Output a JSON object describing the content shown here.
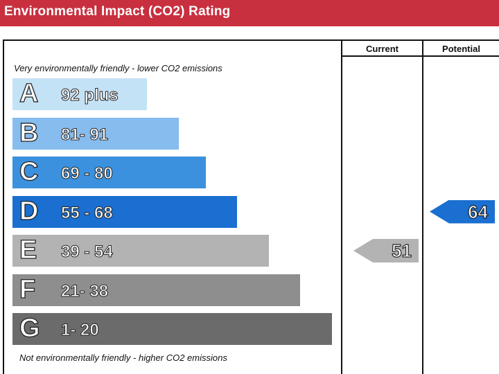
{
  "header": {
    "title": "Environmental Impact (CO2) Rating"
  },
  "columns": {
    "current": "Current",
    "potential": "Potential"
  },
  "notes": {
    "top": "Very environmentally friendly - lower CO2 emissions",
    "bottom": "Not environmentally friendly - higher CO2 emissions"
  },
  "chart_data": {
    "type": "bar",
    "title": "Environmental Impact (CO2) Rating",
    "bands": [
      {
        "letter": "A",
        "range": "92 plus",
        "color": "#c4e2f6"
      },
      {
        "letter": "B",
        "range": "81- 91",
        "color": "#86bcee"
      },
      {
        "letter": "C",
        "range": "69 - 80",
        "color": "#3b91dd"
      },
      {
        "letter": "D",
        "range": "55 - 68",
        "color": "#1a6fd0"
      },
      {
        "letter": "E",
        "range": "39 - 54",
        "color": "#b3b3b3"
      },
      {
        "letter": "F",
        "range": "21- 38",
        "color": "#8e8e8e"
      },
      {
        "letter": "G",
        "range": "1- 20",
        "color": "#6b6b6b"
      }
    ],
    "current": {
      "value": 51,
      "band": "E",
      "color": "#b3b3b3"
    },
    "potential": {
      "value": 64,
      "band": "D",
      "color": "#1a6fd0"
    }
  }
}
